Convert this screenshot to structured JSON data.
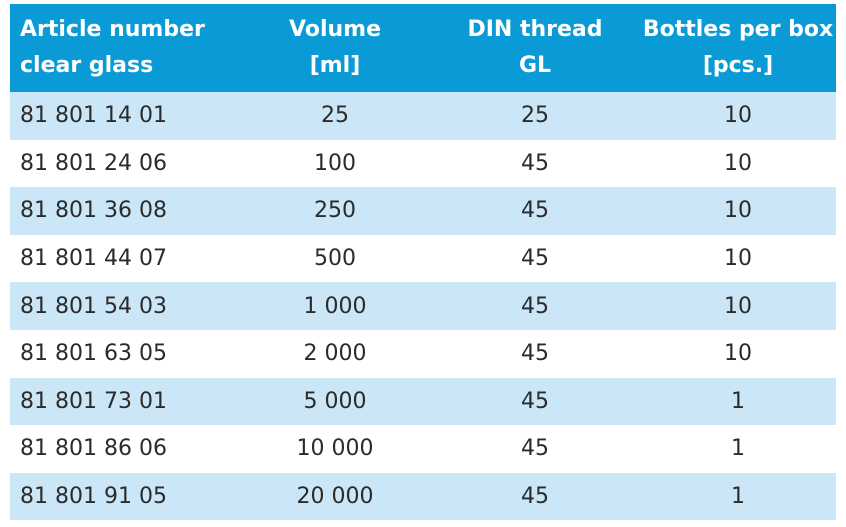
{
  "table": {
    "header_color": "#0a9ad6",
    "stripe_color": "#cbe7f7",
    "headers": [
      {
        "line1": "Article number",
        "line2": "clear glass"
      },
      {
        "line1": "Volume",
        "line2": "[ml]"
      },
      {
        "line1": "DIN thread",
        "line2": "GL"
      },
      {
        "line1": "Bottles per box",
        "line2": "[pcs.]"
      }
    ],
    "rows": [
      {
        "article": "81 801 14 01",
        "volume": "25",
        "thread": "25",
        "bottles": "10"
      },
      {
        "article": "81 801 24 06",
        "volume": "100",
        "thread": "45",
        "bottles": "10"
      },
      {
        "article": "81 801 36 08",
        "volume": "250",
        "thread": "45",
        "bottles": "10"
      },
      {
        "article": "81 801 44 07",
        "volume": "500",
        "thread": "45",
        "bottles": "10"
      },
      {
        "article": "81 801 54 03",
        "volume": "1 000",
        "thread": "45",
        "bottles": "10"
      },
      {
        "article": "81 801 63 05",
        "volume": "2 000",
        "thread": "45",
        "bottles": "10"
      },
      {
        "article": "81 801 73 01",
        "volume": "5 000",
        "thread": "45",
        "bottles": "1"
      },
      {
        "article": "81 801 86 06",
        "volume": "10 000",
        "thread": "45",
        "bottles": "1"
      },
      {
        "article": "81 801 91 05",
        "volume": "20 000",
        "thread": "45",
        "bottles": "1"
      }
    ]
  }
}
